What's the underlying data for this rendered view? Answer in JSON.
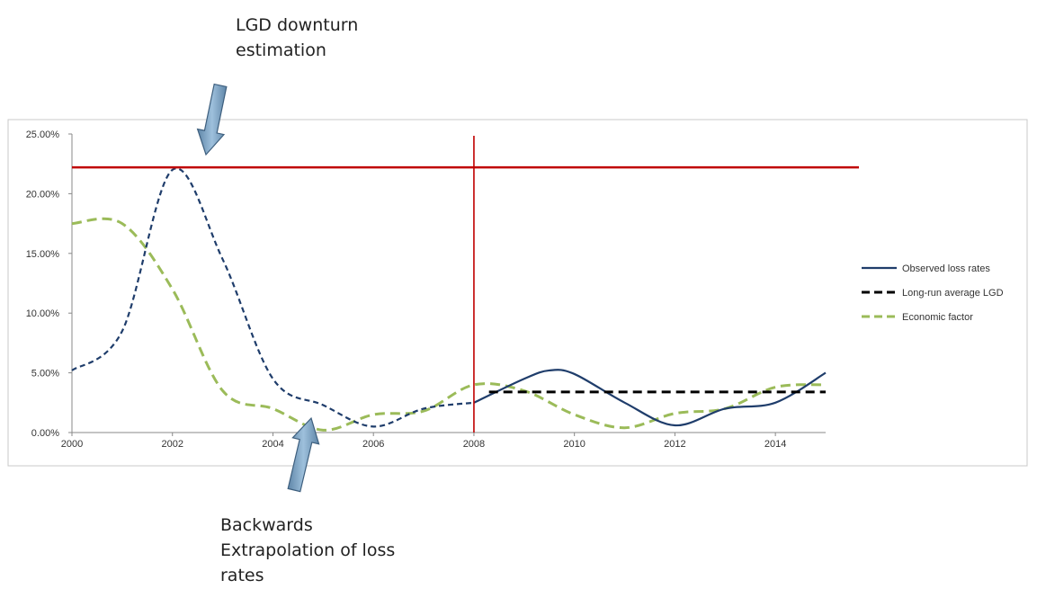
{
  "annotations": {
    "top": "LGD downturn\nestimation",
    "bottom": "Backwards\nExtrapolation of loss\nrates"
  },
  "chart_data": {
    "type": "line",
    "xlim": [
      2000,
      2015
    ],
    "ylim": [
      0,
      0.25
    ],
    "xticks": [
      2000,
      2002,
      2004,
      2006,
      2008,
      2010,
      2012,
      2014
    ],
    "xtick_labels": [
      "2000",
      "2002",
      "2004",
      "2006",
      "2008",
      "2010",
      "2012",
      "2014"
    ],
    "yticks": [
      0,
      0.05,
      0.1,
      0.15,
      0.2,
      0.25
    ],
    "ytick_labels": [
      "0.00%",
      "5.00%",
      "10.00%",
      "15.00%",
      "20.00%",
      "25.00%"
    ],
    "grid": false,
    "legend_position": "right",
    "series": [
      {
        "name": "Observed loss rates",
        "color": "#1f3d6b",
        "style": "solid",
        "x": [
          2008,
          2009,
          2009.5,
          2010,
          2011,
          2012,
          2013,
          2014,
          2015
        ],
        "y": [
          0.025,
          0.045,
          0.052,
          0.049,
          0.025,
          0.006,
          0.02,
          0.025,
          0.05
        ]
      },
      {
        "name": "Backwards extrapolated loss rates",
        "color": "#1f3d6b",
        "style": "dashed",
        "in_legend": false,
        "x": [
          2000,
          2001,
          2002,
          2003,
          2004,
          2005,
          2006,
          2007,
          2008
        ],
        "y": [
          0.052,
          0.085,
          0.22,
          0.145,
          0.045,
          0.023,
          0.005,
          0.02,
          0.025
        ]
      },
      {
        "name": "Long-run average LGD",
        "color": "#000000",
        "style": "dashed",
        "x": [
          2008.3,
          2015
        ],
        "y": [
          0.034,
          0.034
        ]
      },
      {
        "name": "Economic factor",
        "color": "#9bbb59",
        "style": "dashed",
        "x": [
          2000,
          2001,
          2002,
          2003,
          2004,
          2005,
          2006,
          2007,
          2008,
          2009,
          2010,
          2011,
          2012,
          2013,
          2014,
          2015
        ],
        "y": [
          0.175,
          0.175,
          0.12,
          0.035,
          0.02,
          0.002,
          0.015,
          0.018,
          0.04,
          0.035,
          0.015,
          0.004,
          0.016,
          0.02,
          0.038,
          0.04
        ]
      }
    ],
    "reference_lines": {
      "horizontal_y": 0.222,
      "vertical_x": 2008,
      "color": "#c00000"
    }
  }
}
